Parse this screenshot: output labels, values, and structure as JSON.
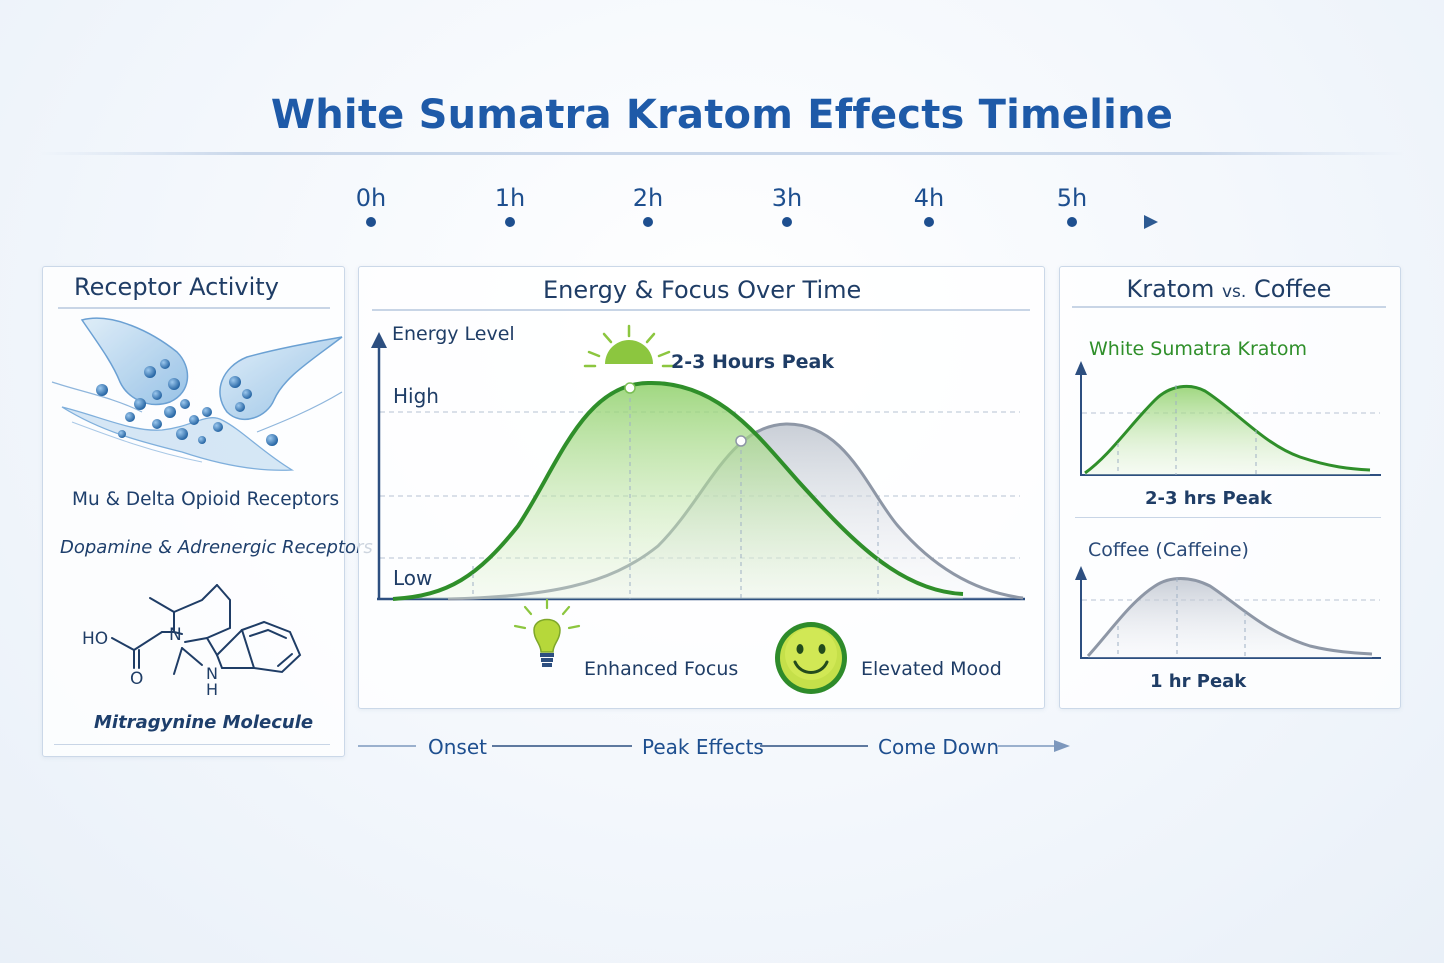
{
  "title": "White Sumatra Kratom Effects Timeline",
  "timeline": {
    "ticks": [
      "0h",
      "1h",
      "2h",
      "3h",
      "4h",
      "5h"
    ]
  },
  "receptor_panel": {
    "title": "Receptor Activity",
    "receptor_caption_1": "Mu & Delta Opioid Receptors",
    "receptor_caption_2": "Dopamine & Adrenergic Receptors",
    "molecule_labels": {
      "hydroxyl": "HO",
      "oxygen": "O",
      "nitrogen": "N",
      "n_bottom": "N",
      "h_bottom": "H"
    },
    "molecule_caption": "Mitragynine Molecule"
  },
  "energy_panel": {
    "title": "Energy & Focus Over Time",
    "y_axis_label": "Energy Level",
    "level_high": "High",
    "level_low": "Low",
    "peak_label": "2-3 Hours Peak",
    "focus_label": "Enhanced Focus",
    "mood_label": "Elevated Mood"
  },
  "compare_panel": {
    "title_main": "Kratom",
    "title_vs": "vs.",
    "title_end": "Coffee",
    "kratom_label": "White Sumatra Kratom",
    "kratom_peak": "2-3 hrs Peak",
    "coffee_label": "Coffee (Caffeine)",
    "coffee_peak": "1 hr Peak"
  },
  "phases": [
    "Onset",
    "Peak Effects",
    "Come Down"
  ],
  "colors": {
    "title": "#1e5aa8",
    "kratom_green": "#2f8f2a",
    "coffee_gray": "#8e97a6",
    "axis_blue": "#2d4f80"
  }
}
